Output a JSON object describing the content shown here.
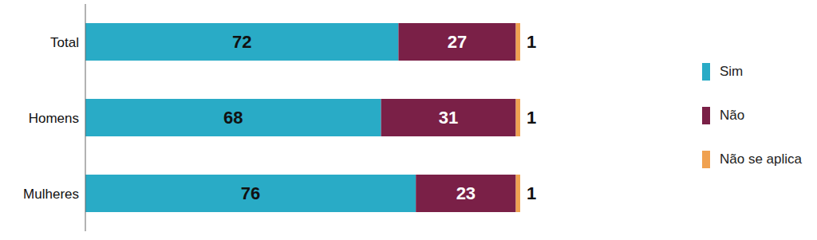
{
  "chart_data": {
    "type": "bar",
    "orientation": "horizontal",
    "stacked": true,
    "data_labels": true,
    "tick_labels": "y",
    "legend": "right",
    "categories": [
      "Total",
      "Homens",
      "Mulheres"
    ],
    "xlim": [
      0,
      100
    ],
    "series": [
      {
        "name": "Sim",
        "color": "#29abc6",
        "values": [
          72,
          68,
          76
        ]
      },
      {
        "name": "Não",
        "color": "#7a2047",
        "values": [
          27,
          31,
          23
        ]
      },
      {
        "name": "Não se aplica",
        "color": "#f0a150",
        "values": [
          1,
          1,
          1
        ]
      }
    ]
  }
}
